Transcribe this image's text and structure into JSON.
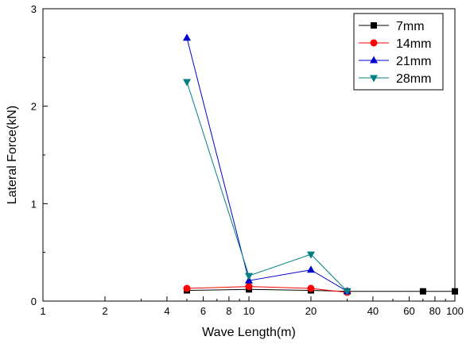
{
  "chart_data": {
    "type": "line",
    "xlabel": "Wave Length(m)",
    "ylabel": "Lateral Force(kN)",
    "xscale": "log",
    "xlim": [
      1,
      100
    ],
    "ylim": [
      0,
      3
    ],
    "x_ticks": [
      {
        "value": 1,
        "label": "1"
      },
      {
        "value": 2,
        "label": "2"
      },
      {
        "value": 4,
        "label": "4"
      },
      {
        "value": 6,
        "label": "6"
      },
      {
        "value": 8,
        "label": "8"
      },
      {
        "value": 10,
        "label": "10"
      },
      {
        "value": 20,
        "label": "20"
      },
      {
        "value": 40,
        "label": "40"
      },
      {
        "value": 60,
        "label": "60"
      },
      {
        "value": 80,
        "label": "80"
      },
      {
        "value": 100,
        "label": "100"
      }
    ],
    "x_minor_ticks": [
      3,
      5,
      7,
      9,
      30,
      50,
      70,
      90
    ],
    "y_ticks": [
      {
        "value": 0,
        "label": "0"
      },
      {
        "value": 1,
        "label": "1"
      },
      {
        "value": 2,
        "label": "2"
      },
      {
        "value": 3,
        "label": "3"
      }
    ],
    "y_minor_ticks": [
      0.5,
      1.5,
      2.5
    ],
    "grid": false,
    "legend_position": "top-right",
    "series": [
      {
        "name": "7mm",
        "color": "#000000",
        "marker": "square",
        "x": [
          5,
          10,
          20,
          30,
          70,
          100
        ],
        "y": [
          0.11,
          0.12,
          0.11,
          0.1,
          0.1,
          0.1
        ]
      },
      {
        "name": "14mm",
        "color": "#ff0000",
        "marker": "circle",
        "x": [
          5,
          10,
          20,
          30
        ],
        "y": [
          0.13,
          0.15,
          0.13,
          0.09
        ]
      },
      {
        "name": "21mm",
        "color": "#0000cc",
        "marker": "triangle-up",
        "x": [
          5,
          10,
          20,
          30
        ],
        "y": [
          2.7,
          0.21,
          0.32,
          0.1
        ]
      },
      {
        "name": "28mm",
        "color": "#008080",
        "marker": "triangle-down",
        "x": [
          5,
          10,
          20,
          30
        ],
        "y": [
          2.25,
          0.26,
          0.48,
          0.1
        ]
      }
    ]
  }
}
